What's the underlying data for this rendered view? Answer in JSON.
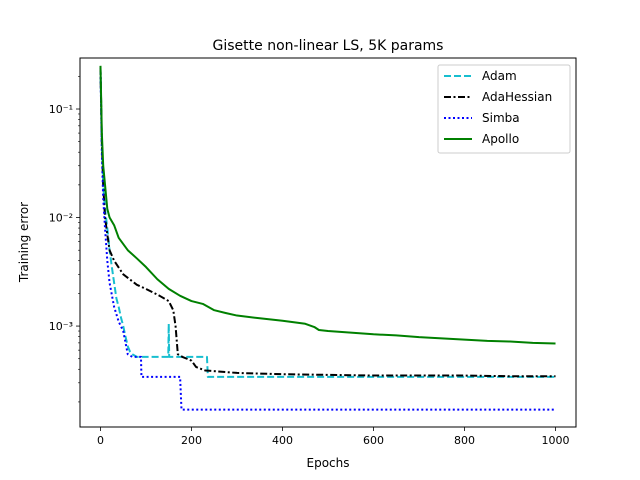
{
  "chart_data": {
    "type": "line",
    "title": "Gisette non-linear LS, 5K params",
    "xlabel": "Epochs",
    "ylabel": "Training error",
    "xlim": [
      -45,
      1045
    ],
    "ylim_log10": [
      -3.93,
      -0.53
    ],
    "yscale": "log",
    "xticks": [
      0,
      200,
      400,
      600,
      800,
      1000
    ],
    "xtick_labels": [
      "0",
      "200",
      "400",
      "600",
      "800",
      "1000"
    ],
    "yticks": [
      0.001,
      0.01,
      0.1
    ],
    "ytick_labels": [
      "10⁻³",
      "10⁻²",
      "10⁻¹"
    ],
    "grid": false,
    "legend_position": "top-right",
    "series": [
      {
        "name": "Adam",
        "color": "#17becf",
        "style": "dashed",
        "points": [
          [
            0,
            0.24
          ],
          [
            3,
            0.05
          ],
          [
            6,
            0.02
          ],
          [
            10,
            0.012
          ],
          [
            15,
            0.008
          ],
          [
            20,
            0.005
          ],
          [
            25,
            0.0035
          ],
          [
            30,
            0.0025
          ],
          [
            35,
            0.0018
          ],
          [
            40,
            0.0015
          ],
          [
            45,
            0.0012
          ],
          [
            50,
            0.001
          ],
          [
            55,
            0.0008
          ],
          [
            60,
            0.00065
          ],
          [
            65,
            0.00058
          ],
          [
            70,
            0.00055
          ],
          [
            80,
            0.00052
          ],
          [
            100,
            0.00052
          ],
          [
            140,
            0.00052
          ],
          [
            149,
            0.00052
          ],
          [
            150,
            0.00105
          ],
          [
            151,
            0.00052
          ],
          [
            180,
            0.00052
          ],
          [
            220,
            0.00052
          ],
          [
            234,
            0.00052
          ],
          [
            236,
            0.00034
          ],
          [
            300,
            0.00034
          ],
          [
            400,
            0.00034
          ],
          [
            500,
            0.00034
          ],
          [
            600,
            0.00034
          ],
          [
            700,
            0.00034
          ],
          [
            800,
            0.00034
          ],
          [
            900,
            0.00034
          ],
          [
            1000,
            0.00034
          ]
        ]
      },
      {
        "name": "AdaHessian",
        "color": "#000000",
        "style": "dashdot",
        "points": [
          [
            0,
            0.24
          ],
          [
            3,
            0.05
          ],
          [
            6,
            0.02
          ],
          [
            10,
            0.01
          ],
          [
            15,
            0.007
          ],
          [
            20,
            0.005
          ],
          [
            30,
            0.004
          ],
          [
            50,
            0.003
          ],
          [
            80,
            0.0024
          ],
          [
            100,
            0.0022
          ],
          [
            130,
            0.0019
          ],
          [
            150,
            0.0017
          ],
          [
            160,
            0.0014
          ],
          [
            165,
            0.001
          ],
          [
            170,
            0.00055
          ],
          [
            180,
            0.00052
          ],
          [
            190,
            0.0005
          ],
          [
            200,
            0.00048
          ],
          [
            210,
            0.00042
          ],
          [
            230,
            0.00039
          ],
          [
            300,
            0.00037
          ],
          [
            400,
            0.00036
          ],
          [
            500,
            0.000355
          ],
          [
            600,
            0.00035
          ],
          [
            700,
            0.00035
          ],
          [
            800,
            0.00035
          ],
          [
            900,
            0.000345
          ],
          [
            1000,
            0.000345
          ]
        ]
      },
      {
        "name": "Simba",
        "color": "#0000ff",
        "style": "dotted",
        "points": [
          [
            0,
            0.24
          ],
          [
            3,
            0.04
          ],
          [
            6,
            0.015
          ],
          [
            10,
            0.008
          ],
          [
            15,
            0.004
          ],
          [
            20,
            0.0025
          ],
          [
            30,
            0.0015
          ],
          [
            40,
            0.0011
          ],
          [
            50,
            0.0009
          ],
          [
            60,
            0.00055
          ],
          [
            70,
            0.00052
          ],
          [
            89,
            0.00052
          ],
          [
            90,
            0.00034
          ],
          [
            175,
            0.00034
          ],
          [
            178,
            0.00017
          ],
          [
            300,
            0.00017
          ],
          [
            400,
            0.00017
          ],
          [
            500,
            0.00017
          ],
          [
            600,
            0.00017
          ],
          [
            700,
            0.00017
          ],
          [
            800,
            0.00017
          ],
          [
            900,
            0.00017
          ],
          [
            1000,
            0.00017
          ]
        ]
      },
      {
        "name": "Apollo",
        "color": "#008000",
        "style": "solid",
        "points": [
          [
            0,
            0.25
          ],
          [
            3,
            0.06
          ],
          [
            6,
            0.03
          ],
          [
            10,
            0.02
          ],
          [
            15,
            0.012
          ],
          [
            20,
            0.01
          ],
          [
            30,
            0.0085
          ],
          [
            40,
            0.0065
          ],
          [
            60,
            0.005
          ],
          [
            80,
            0.0042
          ],
          [
            100,
            0.0035
          ],
          [
            125,
            0.0027
          ],
          [
            150,
            0.0022
          ],
          [
            175,
            0.0019
          ],
          [
            200,
            0.0017
          ],
          [
            225,
            0.0016
          ],
          [
            250,
            0.0014
          ],
          [
            275,
            0.00132
          ],
          [
            300,
            0.00125
          ],
          [
            350,
            0.00118
          ],
          [
            400,
            0.00112
          ],
          [
            450,
            0.00105
          ],
          [
            470,
            0.00098
          ],
          [
            480,
            0.00092
          ],
          [
            500,
            0.0009
          ],
          [
            550,
            0.00087
          ],
          [
            600,
            0.00084
          ],
          [
            650,
            0.00082
          ],
          [
            700,
            0.00079
          ],
          [
            750,
            0.00077
          ],
          [
            800,
            0.00075
          ],
          [
            850,
            0.00073
          ],
          [
            900,
            0.00072
          ],
          [
            950,
            0.0007
          ],
          [
            1000,
            0.00069
          ]
        ]
      }
    ]
  }
}
